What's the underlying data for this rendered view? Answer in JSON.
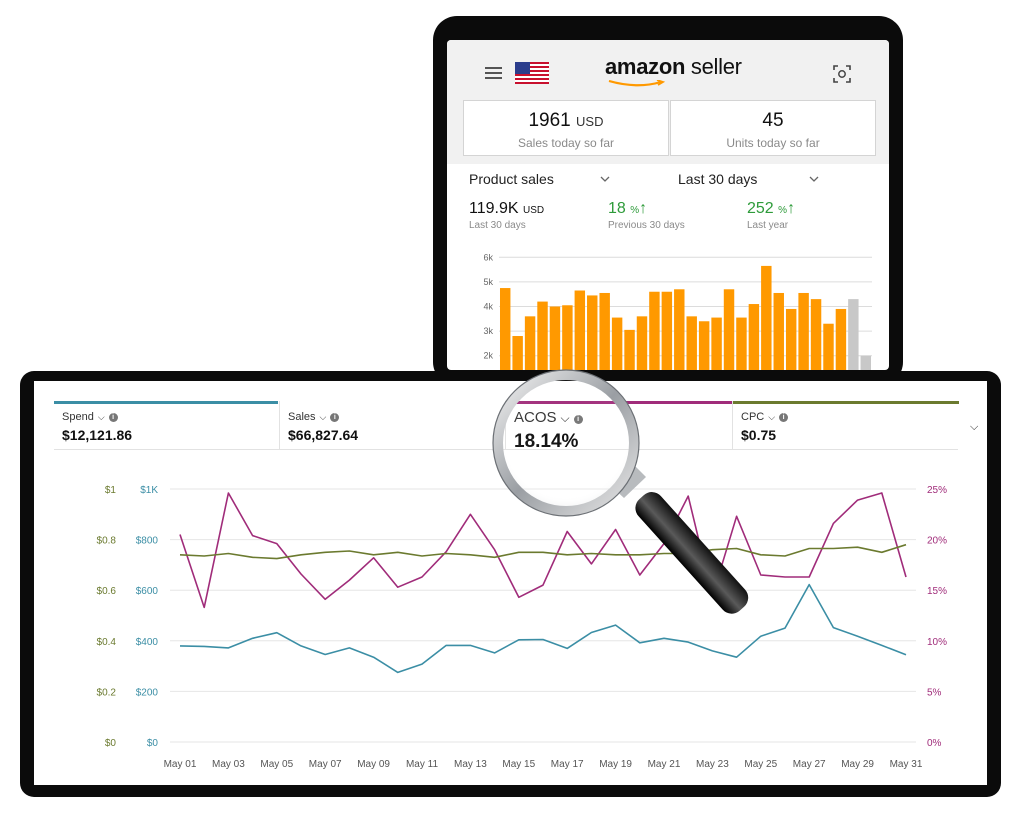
{
  "mobile": {
    "brand": {
      "name_bold": "amazon",
      "name_rest": " seller"
    },
    "icons": {
      "menu": "hamburger-icon",
      "flag": "us-flag-icon",
      "scan": "scan-icon",
      "dropdown": "chevron-down-icon"
    },
    "cards": [
      {
        "value": "1961",
        "unit": "USD",
        "label": "Sales today so far"
      },
      {
        "value": "45",
        "unit": "",
        "label": "Units today so far"
      }
    ],
    "metric_dropdown": "Product sales",
    "period_dropdown": "Last 30 days",
    "kpis": [
      {
        "value": "119.9K",
        "unit": "USD",
        "label": "Last 30 days",
        "green": false
      },
      {
        "value": "18",
        "unit": "%",
        "arrow": "↑",
        "label": "Previous 30 days",
        "green": true
      },
      {
        "value": "252",
        "unit": "%",
        "arrow": "↑",
        "label": "Last year",
        "green": true
      }
    ],
    "chart_data": {
      "type": "bar",
      "yticks": [
        "6k",
        "5k",
        "4k",
        "3k",
        "2k"
      ],
      "ylim": [
        0,
        6
      ],
      "values": [
        4.75,
        2.8,
        3.6,
        4.2,
        4.0,
        4.05,
        4.65,
        4.45,
        4.55,
        3.55,
        3.05,
        3.6,
        4.6,
        4.6,
        4.7,
        3.6,
        3.4,
        3.55,
        4.7,
        3.55,
        4.1,
        5.65,
        4.55,
        3.9,
        4.55,
        4.3,
        3.3,
        3.9,
        4.3,
        2.0
      ],
      "highlight_last": 2,
      "bar_color": "#ff9900",
      "highlight_color": "#c8c8c8"
    }
  },
  "desktop": {
    "tabs": [
      {
        "label": "Spend",
        "value": "$12,121.86",
        "color": "#3b8ea5"
      },
      {
        "label": "Sales",
        "value": "$66,827.64",
        "color": "#ffffff"
      },
      {
        "label": "ACOS",
        "value": "18.14%",
        "color": "#a02c7a"
      },
      {
        "label": "CPC",
        "value": "$0.75",
        "color": "#6b7a2f"
      }
    ],
    "expand_icon": "chevron-down-icon",
    "info_icon": "info-icon",
    "chart_data": {
      "type": "line",
      "x": [
        "May 01",
        "May 02",
        "May 03",
        "May 04",
        "May 05",
        "May 06",
        "May 07",
        "May 08",
        "May 09",
        "May 10",
        "May 11",
        "May 12",
        "May 13",
        "May 14",
        "May 15",
        "May 16",
        "May 17",
        "May 18",
        "May 19",
        "May 20",
        "May 21",
        "May 22",
        "May 23",
        "May 24",
        "May 25",
        "May 26",
        "May 27",
        "May 28",
        "May 29",
        "May 30",
        "May 31"
      ],
      "xticks": [
        "May 01",
        "May 03",
        "May 05",
        "May 07",
        "May 09",
        "May 11",
        "May 13",
        "May 15",
        "May 17",
        "May 19",
        "May 21",
        "May 23",
        "May 25",
        "May 27",
        "May 29",
        "May 31"
      ],
      "axes": {
        "cpc": {
          "ticks": [
            "$0",
            "$0.2",
            "$0.4",
            "$0.6",
            "$0.8",
            "$1"
          ],
          "ylim": [
            0,
            1
          ],
          "color": "#6b7a2f"
        },
        "spend": {
          "ticks": [
            "$0",
            "$200",
            "$400",
            "$600",
            "$800",
            "$1K"
          ],
          "ylim": [
            0,
            1000
          ],
          "color": "#3b8ea5"
        },
        "acos": {
          "ticks": [
            "0%",
            "5%",
            "10%",
            "15%",
            "20%",
            "25%"
          ],
          "ylim": [
            0,
            25
          ],
          "color": "#a02c7a"
        }
      },
      "series": [
        {
          "name": "Spend",
          "axis": "spend",
          "color": "#3b8ea5",
          "values": [
            380,
            378,
            372,
            410,
            432,
            380,
            346,
            372,
            335,
            275,
            308,
            382,
            382,
            352,
            404,
            405,
            370,
            433,
            462,
            392,
            410,
            395,
            360,
            335,
            418,
            450,
            622,
            452,
            418,
            382,
            345
          ]
        },
        {
          "name": "ACOS",
          "axis": "acos",
          "color": "#a02c7a",
          "values": [
            20.5,
            13.3,
            24.6,
            20.4,
            19.6,
            16.6,
            14.1,
            16.0,
            18.2,
            15.3,
            16.3,
            18.8,
            22.5,
            19.0,
            14.3,
            15.5,
            20.8,
            17.6,
            21.0,
            16.5,
            19.6,
            24.3,
            14.4,
            22.3,
            16.5,
            16.3,
            16.3,
            21.6,
            23.9,
            24.6,
            16.3
          ]
        },
        {
          "name": "CPC",
          "axis": "cpc",
          "color": "#6b7a2f",
          "values": [
            0.74,
            0.735,
            0.745,
            0.73,
            0.725,
            0.74,
            0.75,
            0.755,
            0.74,
            0.75,
            0.735,
            0.745,
            0.74,
            0.73,
            0.75,
            0.75,
            0.74,
            0.745,
            0.74,
            0.74,
            0.745,
            0.745,
            0.76,
            0.765,
            0.74,
            0.735,
            0.765,
            0.765,
            0.77,
            0.75,
            0.78
          ]
        }
      ]
    }
  }
}
